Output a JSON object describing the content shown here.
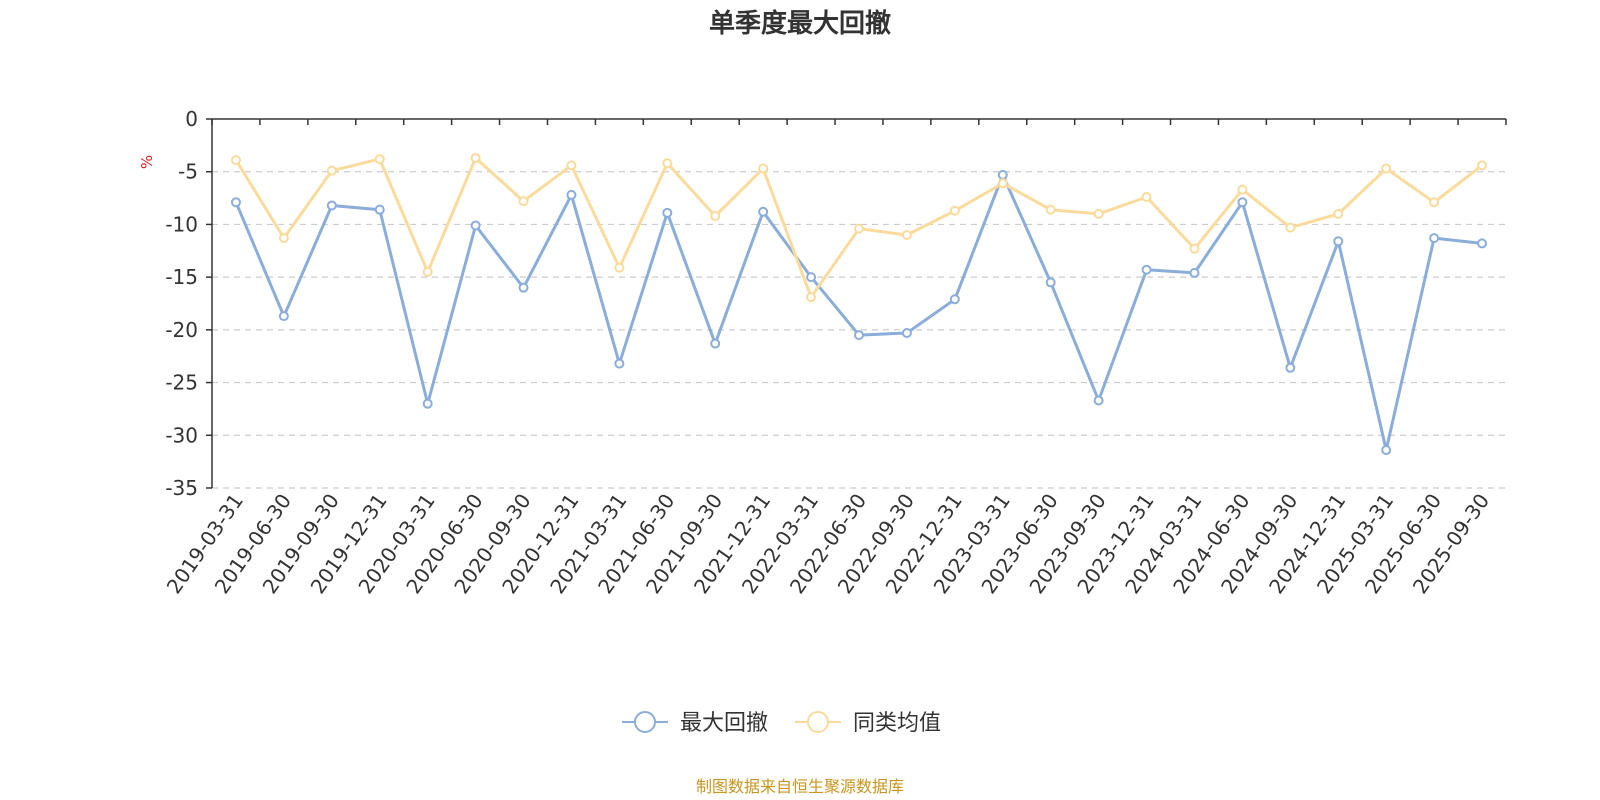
{
  "chart_data": {
    "type": "line",
    "title": "单季度最大回撤",
    "ylabel": "%",
    "ylim": [
      -35,
      0
    ],
    "yticks": [
      0,
      -5,
      -10,
      -15,
      -20,
      -25,
      -30,
      -35
    ],
    "grid": true,
    "legend_position": "bottom-center",
    "categories": [
      "2019-03-31",
      "2019-06-30",
      "2019-09-30",
      "2019-12-31",
      "2020-03-31",
      "2020-06-30",
      "2020-09-30",
      "2020-12-31",
      "2021-03-31",
      "2021-06-30",
      "2021-09-30",
      "2021-12-31",
      "2022-03-31",
      "2022-06-30",
      "2022-09-30",
      "2022-12-31",
      "2023-03-31",
      "2023-06-30",
      "2023-09-30",
      "2023-12-31",
      "2024-03-31",
      "2024-06-30",
      "2024-09-30",
      "2024-12-31",
      "2025-03-31",
      "2025-06-30",
      "2025-09-30"
    ],
    "series": [
      {
        "name": "最大回撤",
        "color": "#8badd9",
        "values": [
          -7.9,
          -18.7,
          -8.2,
          -8.6,
          -27.0,
          -10.1,
          -16.0,
          -7.2,
          -23.2,
          -8.9,
          -21.3,
          -8.8,
          -15.0,
          -20.5,
          -20.3,
          -17.1,
          -5.3,
          -15.5,
          -26.7,
          -14.3,
          -14.6,
          -7.9,
          -23.6,
          -11.6,
          -31.4,
          -11.3,
          -11.8
        ]
      },
      {
        "name": "同类均值",
        "color": "#fbdb9c",
        "values": [
          -3.9,
          -11.3,
          -4.9,
          -3.8,
          -14.5,
          -3.7,
          -7.8,
          -4.4,
          -14.1,
          -4.2,
          -9.2,
          -4.7,
          -16.9,
          -10.4,
          -11.0,
          -8.7,
          -6.1,
          -8.6,
          -9.0,
          -7.4,
          -12.3,
          -6.7,
          -10.3,
          -9.0,
          -4.7,
          -7.9,
          -4.4
        ]
      }
    ]
  },
  "source_note": "制图数据来自恒生聚源数据库"
}
